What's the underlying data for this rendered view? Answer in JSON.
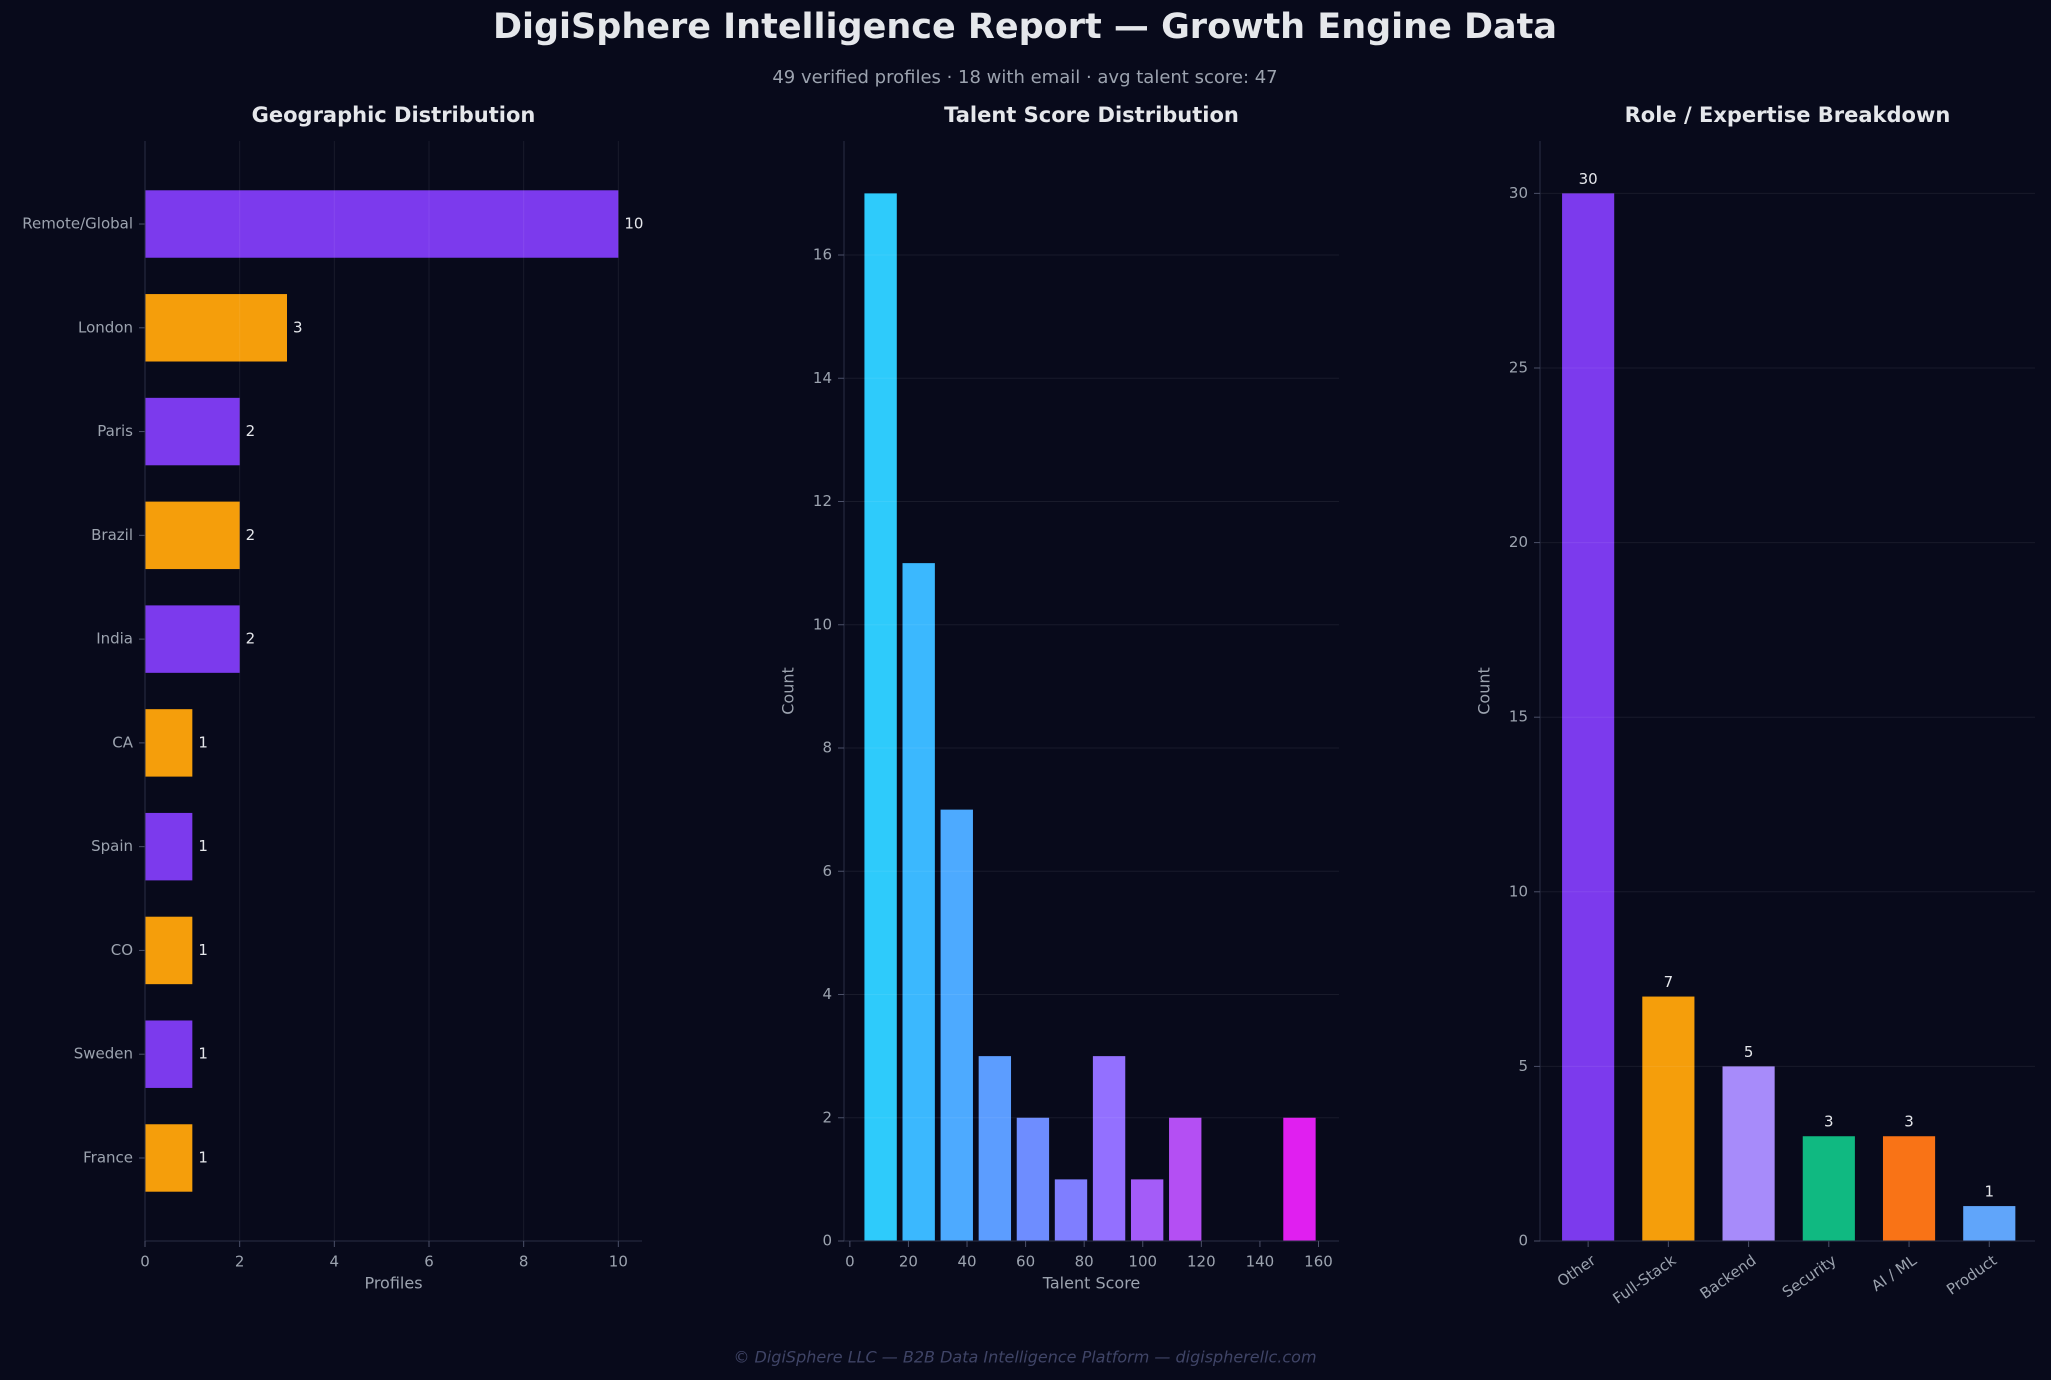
{
  "title": "DigiSphere Intelligence Report — Growth Engine Data",
  "subtitle": "49 verified profiles  ·  18 with email  ·  avg talent score: 47",
  "footer": "© DigiSphere LLC — B2B Data Intelligence Platform — digispherellc.com",
  "chart_data": [
    {
      "type": "hbar",
      "title": "Geographic Distribution",
      "xlabel": "Profiles",
      "categories": [
        "Remote/Global",
        "London",
        "Paris",
        "Brazil",
        "India",
        "CA",
        "Spain",
        "CO",
        "Sweden",
        "France"
      ],
      "values": [
        10,
        3,
        2,
        2,
        2,
        1,
        1,
        1,
        1,
        1
      ],
      "colors": [
        "#7c3aed",
        "#f59e0b",
        "#7c3aed",
        "#f59e0b",
        "#7c3aed",
        "#f59e0b",
        "#7c3aed",
        "#f59e0b",
        "#7c3aed",
        "#f59e0b"
      ],
      "xlim": [
        0,
        10.5
      ],
      "xticks": [
        0,
        2,
        4,
        6,
        8,
        10
      ],
      "grid": true
    },
    {
      "type": "histogram",
      "title": "Talent Score Distribution",
      "xlabel": "Talent Score",
      "ylabel": "Count",
      "bins": [
        4,
        17,
        30,
        43,
        56,
        69,
        82,
        95,
        108,
        121,
        134,
        147,
        160
      ],
      "counts": [
        17,
        11,
        7,
        3,
        2,
        1,
        3,
        1,
        2,
        0,
        0,
        2
      ],
      "colors": [
        "#2ecbfb",
        "#3bb8fe",
        "#4daaff",
        "#5c9dff",
        "#6e8dff",
        "#7f7eff",
        "#9370ff",
        "#a45cf8",
        "#b44ff3",
        "#c43ef2",
        "#d42ff1",
        "#e01ff0"
      ],
      "xlim": [
        -2,
        167
      ],
      "xticks": [
        0,
        20,
        40,
        60,
        80,
        100,
        120,
        140,
        160
      ],
      "ylim": [
        0,
        17.85
      ],
      "yticks": [
        0,
        2,
        4,
        6,
        8,
        10,
        12,
        14,
        16
      ],
      "grid": true
    },
    {
      "type": "bar",
      "title": "Role / Expertise Breakdown",
      "ylabel": "Count",
      "categories": [
        "Other",
        "Full-Stack",
        "Backend",
        "Security",
        "AI / ML",
        "Product"
      ],
      "values": [
        30,
        7,
        5,
        3,
        3,
        1
      ],
      "colors": [
        "#7c3aed",
        "#f59e0b",
        "#a78bfa",
        "#10b981",
        "#f97316",
        "#60a5fa"
      ],
      "ylim": [
        0,
        31.5
      ],
      "yticks": [
        0,
        5,
        10,
        15,
        20,
        25,
        30
      ],
      "grid": true
    }
  ]
}
